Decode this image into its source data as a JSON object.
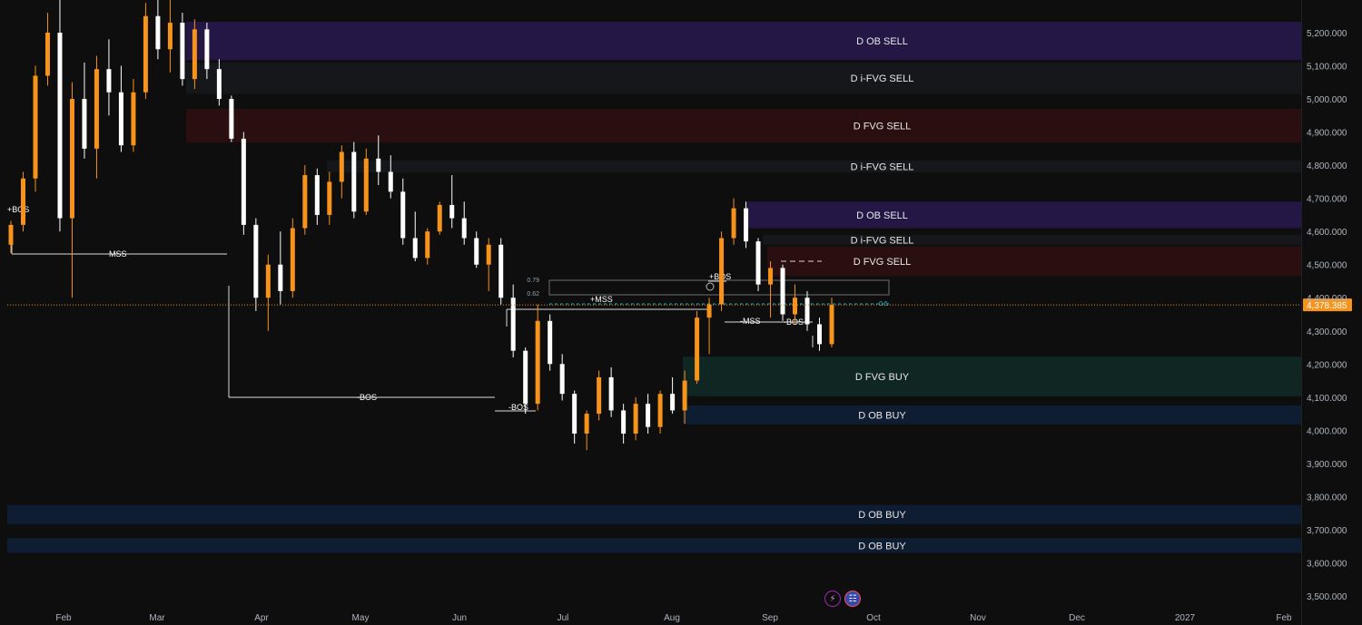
{
  "chart_data": {
    "type": "candlestick",
    "y_axis": {
      "ticks": [
        "5,200.000",
        "5,100.000",
        "5,000.000",
        "4,900.000",
        "4,800.000",
        "4,700.000",
        "4,600.000",
        "4,500.000",
        "4,400.000",
        "4,300.000",
        "4,200.000",
        "4,100.000",
        "4,000.000",
        "3,900.000",
        "3,800.000",
        "3,700.000",
        "3,600.000",
        "3,500.000"
      ],
      "ylim": [
        3470,
        5300
      ]
    },
    "x_axis": {
      "ticks": [
        "Feb",
        "Mar",
        "Apr",
        "May",
        "Jun",
        "Jul",
        "Aug",
        "Sep",
        "Oct",
        "Nov",
        "Dec",
        "2027",
        "Feb"
      ]
    },
    "last_price": {
      "label": "4,378.385",
      "value": 4378.385,
      "color": "#f7931a"
    },
    "zones": [
      {
        "label": "D OB SELL",
        "top": 5233,
        "bottom": 5117,
        "start": "Mar",
        "color": "#241745"
      },
      {
        "label": "D i-FVG SELL",
        "top": 5110,
        "bottom": 5015,
        "start": "Mar",
        "color": "#15171a"
      },
      {
        "label": "D FVG SELL",
        "top": 4970,
        "bottom": 4868,
        "start": "Mar",
        "color": "#2a0f10"
      },
      {
        "label": "D i-FVG SELL",
        "top": 4815,
        "bottom": 4778,
        "start": "Apr",
        "color": "#15171a"
      },
      {
        "label": "D OB SELL",
        "top": 4690,
        "bottom": 4610,
        "start": "Aug",
        "color": "#241745"
      },
      {
        "label": "D i-FVG SELL",
        "top": 4590,
        "bottom": 4560,
        "start": "Aug",
        "color": "#15171a"
      },
      {
        "label": "D FVG SELL",
        "top": 4555,
        "bottom": 4465,
        "start": "Sep",
        "color": "#2a0f10"
      },
      {
        "label": "D FVG BUY",
        "top": 4222,
        "bottom": 4103,
        "start": "Aug",
        "color": "#0f2623"
      },
      {
        "label": "D OB BUY",
        "top": 4075,
        "bottom": 4018,
        "start": "Aug",
        "color": "#0f1d33"
      },
      {
        "label": "D OB BUY",
        "top": 3775,
        "bottom": 3717,
        "start": "Feb",
        "color": "#0f1d33"
      },
      {
        "label": "D OB BUY",
        "top": 3675,
        "bottom": 3630,
        "start": "Feb",
        "color": "#0f1d33"
      }
    ],
    "structure_labels": [
      "+BOS",
      "MSS",
      "-BOS",
      "-BOS",
      "+MSS",
      "+BOS",
      "-MSS",
      "-BOS"
    ],
    "fib_labels": [
      "0.79",
      "0.62",
      "0.5"
    ],
    "candles": [
      {
        "o": 4560,
        "h": 4632,
        "l": 4535,
        "c": 4620
      },
      {
        "o": 4620,
        "h": 4780,
        "l": 4600,
        "c": 4760
      },
      {
        "o": 4760,
        "h": 5100,
        "l": 4720,
        "c": 5070
      },
      {
        "o": 5070,
        "h": 5260,
        "l": 5040,
        "c": 5200
      },
      {
        "o": 5200,
        "h": 5300,
        "l": 4600,
        "c": 4640
      },
      {
        "o": 4640,
        "h": 5050,
        "l": 4400,
        "c": 5000
      },
      {
        "o": 5000,
        "h": 5110,
        "l": 4820,
        "c": 4850
      },
      {
        "o": 4850,
        "h": 5130,
        "l": 4760,
        "c": 5090
      },
      {
        "o": 5090,
        "h": 5180,
        "l": 4950,
        "c": 5020
      },
      {
        "o": 5020,
        "h": 5100,
        "l": 4840,
        "c": 4860
      },
      {
        "o": 4860,
        "h": 5060,
        "l": 4840,
        "c": 5020
      },
      {
        "o": 5020,
        "h": 5290,
        "l": 5000,
        "c": 5250
      },
      {
        "o": 5250,
        "h": 5300,
        "l": 5120,
        "c": 5150
      },
      {
        "o": 5150,
        "h": 5300,
        "l": 5080,
        "c": 5230
      },
      {
        "o": 5230,
        "h": 5260,
        "l": 5040,
        "c": 5060
      },
      {
        "o": 5060,
        "h": 5240,
        "l": 5030,
        "c": 5210
      },
      {
        "o": 5210,
        "h": 5230,
        "l": 5060,
        "c": 5090
      },
      {
        "o": 5090,
        "h": 5120,
        "l": 4980,
        "c": 5000
      },
      {
        "o": 5000,
        "h": 5010,
        "l": 4870,
        "c": 4880
      },
      {
        "o": 4880,
        "h": 4900,
        "l": 4590,
        "c": 4620
      },
      {
        "o": 4620,
        "h": 4640,
        "l": 4360,
        "c": 4400
      },
      {
        "o": 4400,
        "h": 4530,
        "l": 4300,
        "c": 4500
      },
      {
        "o": 4500,
        "h": 4600,
        "l": 4380,
        "c": 4420
      },
      {
        "o": 4420,
        "h": 4640,
        "l": 4400,
        "c": 4610
      },
      {
        "o": 4610,
        "h": 4800,
        "l": 4590,
        "c": 4770
      },
      {
        "o": 4770,
        "h": 4790,
        "l": 4620,
        "c": 4650
      },
      {
        "o": 4650,
        "h": 4780,
        "l": 4620,
        "c": 4750
      },
      {
        "o": 4750,
        "h": 4860,
        "l": 4700,
        "c": 4840
      },
      {
        "o": 4840,
        "h": 4870,
        "l": 4640,
        "c": 4660
      },
      {
        "o": 4660,
        "h": 4850,
        "l": 4650,
        "c": 4820
      },
      {
        "o": 4820,
        "h": 4890,
        "l": 4740,
        "c": 4780
      },
      {
        "o": 4780,
        "h": 4830,
        "l": 4700,
        "c": 4720
      },
      {
        "o": 4720,
        "h": 4760,
        "l": 4560,
        "c": 4580
      },
      {
        "o": 4580,
        "h": 4660,
        "l": 4510,
        "c": 4520
      },
      {
        "o": 4520,
        "h": 4610,
        "l": 4500,
        "c": 4600
      },
      {
        "o": 4600,
        "h": 4690,
        "l": 4590,
        "c": 4680
      },
      {
        "o": 4680,
        "h": 4770,
        "l": 4610,
        "c": 4640
      },
      {
        "o": 4640,
        "h": 4690,
        "l": 4560,
        "c": 4580
      },
      {
        "o": 4580,
        "h": 4600,
        "l": 4490,
        "c": 4500
      },
      {
        "o": 4500,
        "h": 4580,
        "l": 4420,
        "c": 4560
      },
      {
        "o": 4560,
        "h": 4580,
        "l": 4380,
        "c": 4400
      },
      {
        "o": 4400,
        "h": 4440,
        "l": 4220,
        "c": 4240
      },
      {
        "o": 4240,
        "h": 4250,
        "l": 4050,
        "c": 4080
      },
      {
        "o": 4080,
        "h": 4380,
        "l": 4060,
        "c": 4330
      },
      {
        "o": 4330,
        "h": 4350,
        "l": 4180,
        "c": 4200
      },
      {
        "o": 4200,
        "h": 4230,
        "l": 4090,
        "c": 4110
      },
      {
        "o": 4110,
        "h": 4120,
        "l": 3960,
        "c": 3990
      },
      {
        "o": 3990,
        "h": 4060,
        "l": 3940,
        "c": 4050
      },
      {
        "o": 4050,
        "h": 4180,
        "l": 4030,
        "c": 4160
      },
      {
        "o": 4160,
        "h": 4190,
        "l": 4040,
        "c": 4060
      },
      {
        "o": 4060,
        "h": 4080,
        "l": 3960,
        "c": 3990
      },
      {
        "o": 3990,
        "h": 4100,
        "l": 3970,
        "c": 4080
      },
      {
        "o": 4080,
        "h": 4110,
        "l": 3990,
        "c": 4010
      },
      {
        "o": 4010,
        "h": 4120,
        "l": 3990,
        "c": 4110
      },
      {
        "o": 4110,
        "h": 4160,
        "l": 4050,
        "c": 4060
      },
      {
        "o": 4060,
        "h": 4180,
        "l": 4020,
        "c": 4150
      },
      {
        "o": 4150,
        "h": 4360,
        "l": 4140,
        "c": 4340
      },
      {
        "o": 4340,
        "h": 4400,
        "l": 4230,
        "c": 4380
      },
      {
        "o": 4380,
        "h": 4600,
        "l": 4360,
        "c": 4580
      },
      {
        "o": 4580,
        "h": 4700,
        "l": 4560,
        "c": 4670
      },
      {
        "o": 4670,
        "h": 4690,
        "l": 4550,
        "c": 4570
      },
      {
        "o": 4570,
        "h": 4580,
        "l": 4420,
        "c": 4440
      },
      {
        "o": 4440,
        "h": 4510,
        "l": 4340,
        "c": 4490
      },
      {
        "o": 4490,
        "h": 4500,
        "l": 4330,
        "c": 4350
      },
      {
        "o": 4350,
        "h": 4440,
        "l": 4320,
        "c": 4400
      },
      {
        "o": 4400,
        "h": 4420,
        "l": 4300,
        "c": 4320
      },
      {
        "o": 4320,
        "h": 4340,
        "l": 4240,
        "c": 4260
      },
      {
        "o": 4260,
        "h": 4400,
        "l": 4250,
        "c": 4378.385
      }
    ]
  }
}
